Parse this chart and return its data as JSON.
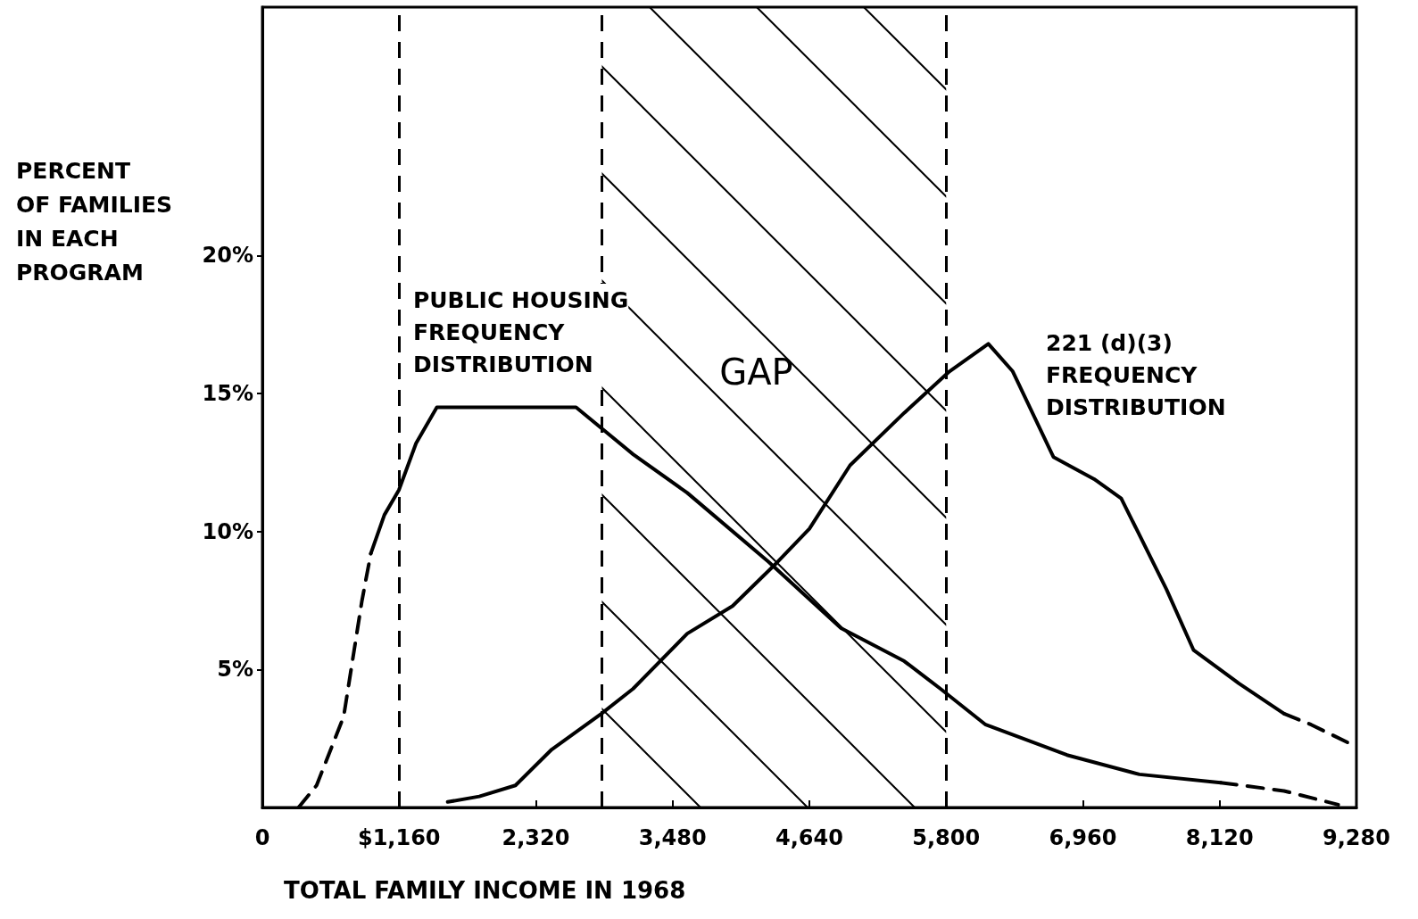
{
  "chart_data": {
    "type": "line",
    "xlabel": "TOTAL FAMILY INCOME IN 1968",
    "ylabel": "PERCENT\nOF FAMILIES\nIN EACH\nPROGRAM",
    "xlim": [
      0,
      9280
    ],
    "xticks": [
      0,
      {
        "value": 1160,
        "label": "$1,160"
      },
      {
        "value": 2320,
        "label": "2,320"
      },
      {
        "value": 3480,
        "label": "3,480"
      },
      {
        "value": 4640,
        "label": "4,640"
      },
      {
        "value": 5800,
        "label": "5,800"
      },
      {
        "value": 6960,
        "label": "6,960"
      },
      {
        "value": 8120,
        "label": "8,120"
      },
      {
        "value": 9280,
        "label": "9,280"
      }
    ],
    "ylim": [
      0,
      29
    ],
    "yticks": [
      {
        "value": 5,
        "label": "5%"
      },
      {
        "value": 10,
        "label": "10%"
      },
      {
        "value": 15,
        "label": "15%"
      },
      {
        "value": 20,
        "label": "20%"
      }
    ],
    "grid": false,
    "marker": "none",
    "series": [
      {
        "color": "#000000",
        "line_style": "dashed",
        "x": [
          307,
          460,
          690,
          845,
          920
        ],
        "values": [
          0,
          0.8,
          3.3,
          7.5,
          9.2
        ]
      },
      {
        "color": "#000000",
        "line_style": "solid",
        "x": [
          920,
          1035,
          1158,
          1304,
          1480,
          2661,
          3144,
          3604,
          4294,
          4908,
          5445,
          5752,
          6135,
          6825,
          7439,
          8129
        ],
        "values": [
          9.2,
          10.6,
          11.5,
          13.2,
          14.5,
          14.5,
          12.8,
          11.4,
          8.9,
          6.5,
          5.3,
          4.3,
          3.0,
          1.9,
          1.2,
          0.9
        ]
      },
      {
        "color": "#000000",
        "line_style": "dashed",
        "x": [
          8129,
          8666,
          9126
        ],
        "values": [
          0.9,
          0.6,
          0.1
        ]
      },
      {
        "color": "#000000",
        "line_style": "solid",
        "x": [
          1572,
          1840,
          2147,
          2454,
          2876,
          3144,
          3604,
          3988,
          4371,
          4640,
          4985,
          5445,
          5828,
          6158,
          6365,
          6710,
          7055,
          7285,
          7669,
          7899,
          8282,
          8666
        ],
        "values": [
          0.2,
          0.4,
          0.8,
          2.1,
          3.4,
          4.3,
          6.3,
          7.3,
          8.9,
          10.1,
          12.4,
          14.3,
          15.8,
          16.8,
          15.8,
          12.7,
          11.9,
          11.2,
          7.9,
          5.7,
          4.5,
          3.4
        ]
      },
      {
        "color": "#000000",
        "line_style": "dashed",
        "x": [
          8666,
          8896,
          9280
        ],
        "values": [
          3.4,
          3.0,
          2.2
        ]
      }
    ],
    "ref_lines": [
      {
        "axis": "x",
        "value": 1160,
        "line_style": "dashed",
        "color": "#000000"
      },
      {
        "axis": "x",
        "value": 2880,
        "line_style": "dashed",
        "color": "#000000"
      },
      {
        "axis": "x",
        "value": 5800,
        "line_style": "dashed",
        "color": "#000000"
      }
    ],
    "bands": [
      {
        "axis": "x",
        "from": 2880,
        "to": 5800,
        "label": "GAP",
        "color": "#000000"
      }
    ],
    "annotations": [
      "PUBLIC HOUSING\nFREQUENCY\nDISTRIBUTION",
      "221 (d)(3)\nFREQUENCY\nDISTRIBUTION"
    ]
  }
}
